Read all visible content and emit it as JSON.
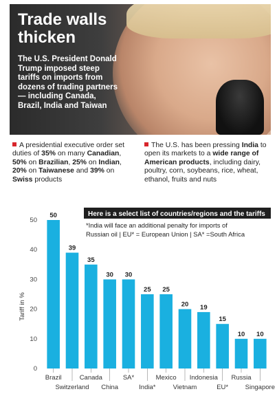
{
  "header": {
    "title_line1": "Trade walls",
    "title_line2": "thicken",
    "lede": "The U.S. President Donald Trump imposed steep tariffs on imports from dozens of trading partners — including Canada, Brazil, India and Taiwan"
  },
  "notes": {
    "left": {
      "t1": "A presidential executive order set duties of ",
      "b1": "35%",
      "t2": " on many ",
      "b2": "Canadian",
      "t3": ", ",
      "b3": "50%",
      "t4": " on ",
      "b4": "Brazilian",
      "t5": ", ",
      "b5": "25%",
      "t6": " on ",
      "b6": "Indian",
      "t7": ", ",
      "b7": "20%",
      "t8": " on ",
      "b8": "Taiwanese",
      "t9": " and ",
      "b9": "39%",
      "t10": " on ",
      "b10": "Swiss",
      "t11": " products"
    },
    "right": {
      "t1": "The U.S. has been pressing ",
      "b1": "India",
      "t2": " to open its markets to a ",
      "b2": "wide range of American products",
      "t3": ", including dairy, poultry, corn, soybeans, rice, wheat, ethanol, fruits and nuts"
    }
  },
  "chart_data": {
    "type": "bar",
    "title": "Here is a select list of countries/regions and the tariffs",
    "annotation": "*India will face an additional penalty for imports of Russian oil | EU* = European Union | SA* =South Africa",
    "ylabel": "Tariff in %",
    "ylim": [
      0,
      50
    ],
    "yticks": [
      0,
      10,
      20,
      30,
      40,
      50
    ],
    "categories": [
      "Brazil",
      "Switzerland",
      "Canada",
      "China",
      "SA*",
      "India*",
      "Mexico",
      "Vietnam",
      "Indonesia",
      "EU*",
      "Russia",
      "Singapore"
    ],
    "values": [
      50,
      39,
      35,
      30,
      30,
      25,
      25,
      20,
      19,
      15,
      10,
      10
    ],
    "bar_color": "#1ab0e0",
    "grid": false
  }
}
